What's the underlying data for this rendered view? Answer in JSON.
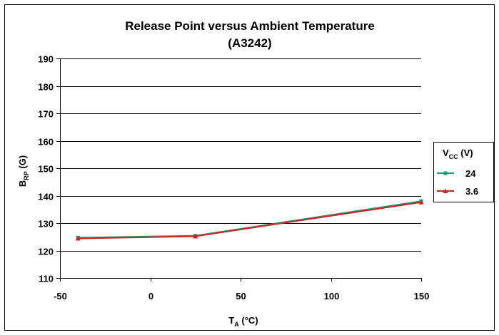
{
  "chart_data": {
    "type": "line",
    "title": "Release Point versus Ambient Temperature",
    "subtitle": "(A3242)",
    "xlabel": {
      "main": "T",
      "sub": "A",
      "suffix": " (°C)"
    },
    "ylabel": {
      "main": "B",
      "sub": "RP",
      "suffix": " (G)"
    },
    "xlim": [
      -50,
      150
    ],
    "ylim": [
      110,
      190
    ],
    "x_ticks": [
      -50,
      0,
      50,
      100,
      150
    ],
    "y_ticks": [
      110,
      120,
      130,
      140,
      150,
      160,
      170,
      180,
      190
    ],
    "grid": "horizontal",
    "legend": {
      "title_main": "V",
      "title_sub": "CC",
      "title_suffix": " (V)",
      "placement": "right"
    },
    "series": [
      {
        "name": "24",
        "color": "#1a9a7a",
        "marker": "square",
        "x": [
          -40,
          25,
          150
        ],
        "y": [
          124.7,
          125.4,
          138.0
        ]
      },
      {
        "name": "3.6",
        "color": "#d42020",
        "marker": "triangle",
        "x": [
          -40,
          25,
          150
        ],
        "y": [
          124.4,
          125.2,
          137.6
        ]
      }
    ]
  }
}
